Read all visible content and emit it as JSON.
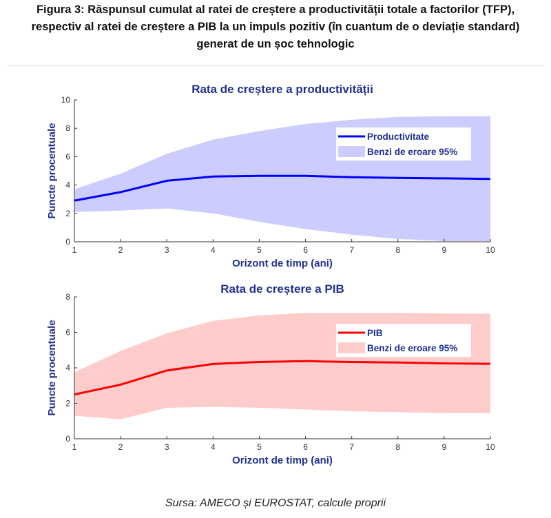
{
  "caption": {
    "line1": "Figura 3: Răspunsul cumulat al ratei de creștere a productivității totale a factorilor (TFP),",
    "line2": "respectiv al ratei de creștere a PIB la un impuls pozitiv (în cuantum de o deviație standard)",
    "line3": "generat de un șoc tehnologic"
  },
  "source": "Sursa: AMECO și EUROSTAT, calcule proprii",
  "chart_data": [
    {
      "type": "line",
      "title": "Rata de creștere a productivității",
      "xlabel": "Orizont de timp (ani)",
      "ylabel": "Puncte procentuale",
      "x": [
        1,
        2,
        3,
        4,
        5,
        6,
        7,
        8,
        9,
        10
      ],
      "xlim": [
        1,
        10
      ],
      "ylim": [
        0,
        10
      ],
      "yticks": [
        0,
        2,
        4,
        6,
        8,
        10
      ],
      "series": [
        {
          "name": "Productivitate",
          "values": [
            2.9,
            3.5,
            4.3,
            4.6,
            4.65,
            4.65,
            4.55,
            4.5,
            4.47,
            4.43
          ],
          "color": "#0000ff"
        },
        {
          "name": "Benzi de eroare 95%",
          "upper": [
            3.7,
            4.8,
            6.2,
            7.2,
            7.8,
            8.3,
            8.6,
            8.8,
            8.85,
            8.85
          ],
          "lower": [
            2.1,
            2.2,
            2.35,
            2.0,
            1.4,
            0.9,
            0.5,
            0.2,
            0.05,
            0.05
          ],
          "color": "#ccccff"
        }
      ],
      "legend": "top-right"
    },
    {
      "type": "line",
      "title": "Rata de creștere a PIB",
      "xlabel": "Orizont de timp (ani)",
      "ylabel": "Puncte procentuale",
      "x": [
        1,
        2,
        3,
        4,
        5,
        6,
        7,
        8,
        9,
        10
      ],
      "xlim": [
        1,
        10
      ],
      "ylim": [
        0,
        8
      ],
      "yticks": [
        0,
        2,
        4,
        6,
        8
      ],
      "series": [
        {
          "name": "PIB",
          "values": [
            2.5,
            3.05,
            3.85,
            4.22,
            4.33,
            4.38,
            4.33,
            4.3,
            4.25,
            4.23
          ],
          "color": "#ff0000"
        },
        {
          "name": "Benzi de eroare 95%",
          "upper": [
            3.75,
            4.95,
            5.95,
            6.65,
            6.95,
            7.1,
            7.1,
            7.1,
            7.07,
            7.05
          ],
          "lower": [
            1.3,
            1.1,
            1.75,
            1.8,
            1.75,
            1.65,
            1.55,
            1.5,
            1.45,
            1.45
          ],
          "color": "#ffcccc"
        }
      ],
      "legend": "top-right"
    }
  ]
}
